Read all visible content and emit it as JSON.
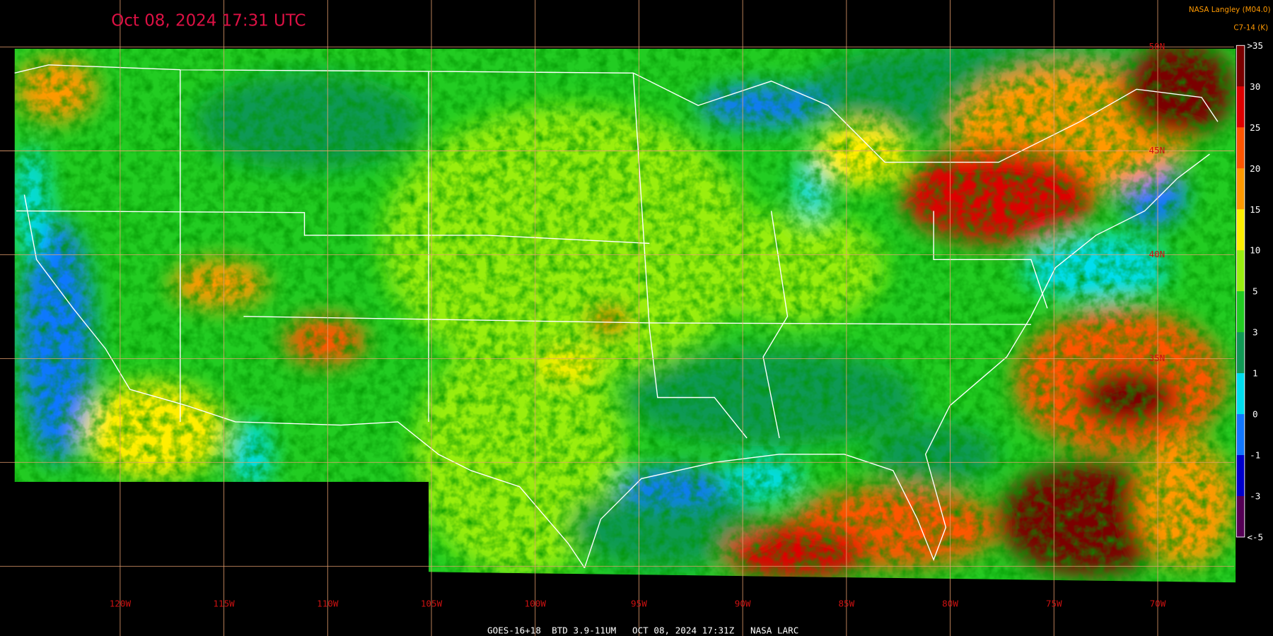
{
  "header": {
    "title": "Oct 08, 2024 17:31 UTC",
    "source": "NASA Langley (M04.0)",
    "product": "C7-14 (K)"
  },
  "colorbar": {
    "labels": [
      ">35",
      "30",
      "25",
      "20",
      "15",
      "10",
      "5",
      "3",
      "1",
      "0",
      "-1",
      "-3",
      "<-5"
    ],
    "colors": [
      "#7a0000",
      "#dd0000",
      "#ff5500",
      "#ff9900",
      "#ffee00",
      "#99ee11",
      "#22cc22",
      "#119955",
      "#00ddee",
      "#1177ff",
      "#0000cc",
      "#550055"
    ]
  },
  "longitude_labels": [
    "120W",
    "115W",
    "110W",
    "105W",
    "100W",
    "95W",
    "90W",
    "85W",
    "80W",
    "75W",
    "70W"
  ],
  "latitude_labels": [
    "50N",
    "45N",
    "40N",
    "35N"
  ],
  "footer": "GOES-16+18  BTD 3.9-11UM   OCT 08, 2024 17:31Z   NASA LARC"
}
